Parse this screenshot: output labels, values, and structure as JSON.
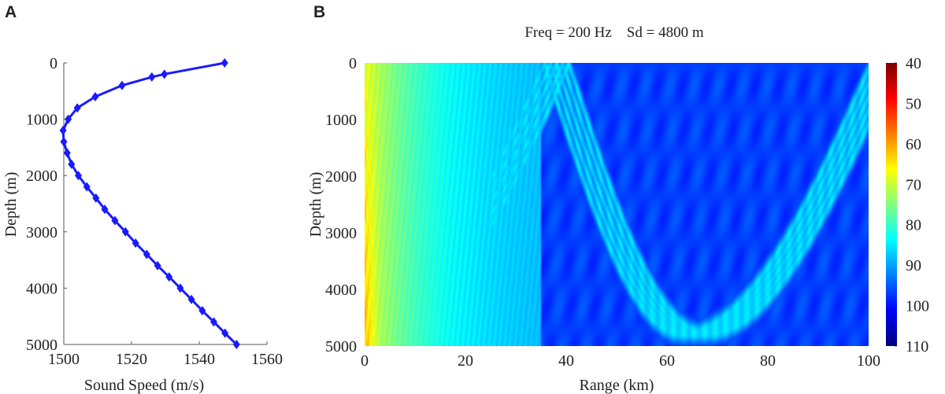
{
  "chart_data": [
    {
      "panel_label": "A",
      "type": "line",
      "xlabel": "Sound Speed (m/s)",
      "ylabel": "Depth (m)",
      "xlim": [
        1500,
        1560
      ],
      "ylim": [
        5000,
        0
      ],
      "y_reversed": true,
      "xticks": [
        "1500",
        "1520",
        "1540",
        "1560"
      ],
      "yticks": [
        "0",
        "1000",
        "2000",
        "3000",
        "4000",
        "5000"
      ],
      "marker": "diamond",
      "color": "#1a1aff",
      "x": [
        1547.5,
        1529.7,
        1526,
        1517.2,
        1509.3,
        1504,
        1501.3,
        1499.8,
        1500,
        1501,
        1502.3,
        1504.3,
        1506.8,
        1509.5,
        1512.1,
        1515.1,
        1518.2,
        1521.2,
        1524.5,
        1527.7,
        1531.1,
        1534.4,
        1537.7,
        1540.9,
        1544.3,
        1547.6,
        1551
      ],
      "y": [
        0,
        200,
        250,
        400,
        600,
        800,
        1000,
        1200,
        1400,
        1600,
        1800,
        2000,
        2200,
        2400,
        2600,
        2800,
        3000,
        3200,
        3400,
        3600,
        3800,
        4000,
        4200,
        4400,
        4600,
        4800,
        5000
      ]
    },
    {
      "panel_label": "B",
      "type": "heatmap",
      "title": "Freq = 200 Hz    Sd = 4800 m",
      "xlabel": "Range (km)",
      "ylabel": "Depth (m)",
      "xlim": [
        0,
        100
      ],
      "ylim": [
        5000,
        0
      ],
      "y_reversed": true,
      "xticks": [
        "0",
        "20",
        "40",
        "60",
        "80",
        "100"
      ],
      "yticks": [
        "0",
        "1000",
        "2000",
        "3000",
        "4000",
        "5000"
      ],
      "colormap": "jet (reversed)",
      "clim": [
        40,
        110
      ],
      "colorbar_ticks": [
        "40",
        "50",
        "60",
        "70",
        "80",
        "90",
        "100",
        "110"
      ]
    }
  ]
}
